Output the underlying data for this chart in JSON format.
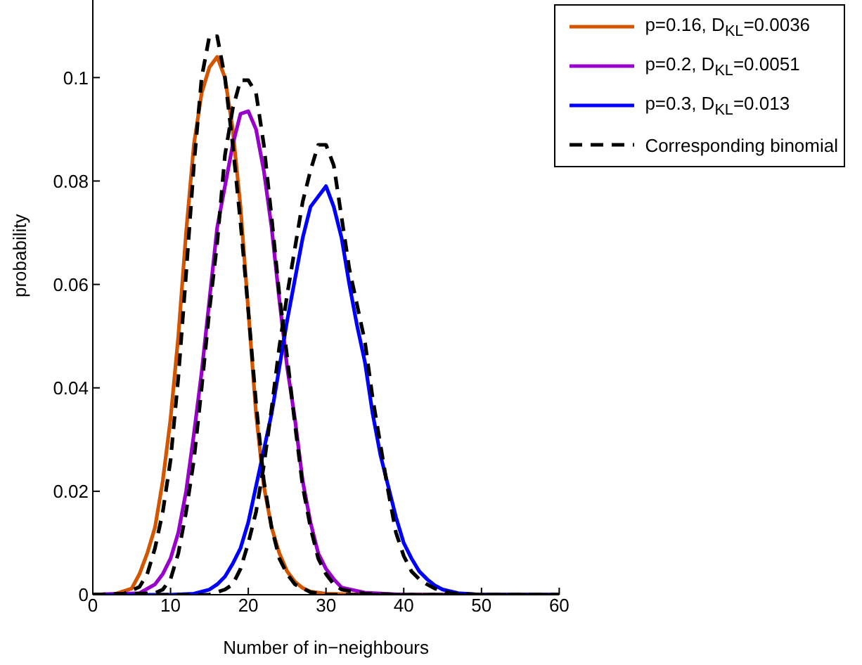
{
  "chart_data": {
    "type": "line",
    "xlabel": "Number of in−neighbours",
    "ylabel": "probability",
    "xlim": [
      0,
      60
    ],
    "xticks": [
      0,
      10,
      20,
      30,
      40,
      50,
      60
    ],
    "ylim": [
      0,
      0.115
    ],
    "yticks": [
      0,
      0.02,
      0.04,
      0.06,
      0.08,
      0.1
    ],
    "grid": false,
    "legend": "top right",
    "marker": "none",
    "series": [
      {
        "name": "p=0.16, D$_{KL}$=0.0036",
        "color": "#d45500",
        "line_style": "solid",
        "x": [
          0,
          3,
          5,
          6,
          7,
          8,
          9,
          10,
          11,
          12,
          13,
          14,
          15,
          16,
          17,
          18,
          19,
          20,
          21,
          22,
          23,
          24,
          25,
          26,
          27,
          28,
          30,
          35,
          60
        ],
        "values": [
          0,
          0.0002,
          0.0012,
          0.004,
          0.008,
          0.013,
          0.022,
          0.034,
          0.05,
          0.07,
          0.087,
          0.097,
          0.102,
          0.104,
          0.1,
          0.09,
          0.075,
          0.055,
          0.035,
          0.021,
          0.013,
          0.008,
          0.0045,
          0.0025,
          0.0013,
          0.0006,
          0.0002,
          0,
          0
        ]
      },
      {
        "name": "p=0.2, D$_{KL}$=0.0051",
        "color": "#9900cc",
        "line_style": "solid",
        "x": [
          0,
          6,
          8,
          9,
          10,
          11,
          12,
          13,
          14,
          15,
          16,
          17,
          18,
          19,
          20,
          21,
          22,
          23,
          24,
          25,
          26,
          27,
          28,
          29,
          30,
          31,
          32,
          35,
          40,
          60
        ],
        "values": [
          0,
          0.0003,
          0.002,
          0.004,
          0.007,
          0.012,
          0.02,
          0.031,
          0.043,
          0.057,
          0.071,
          0.079,
          0.087,
          0.093,
          0.0935,
          0.09,
          0.082,
          0.071,
          0.057,
          0.044,
          0.034,
          0.022,
          0.014,
          0.008,
          0.005,
          0.003,
          0.0014,
          0.0004,
          0,
          0
        ]
      },
      {
        "name": "p=0.3, D$_{KL}$=0.013",
        "color": "#0000ff",
        "line_style": "solid",
        "x": [
          0,
          10,
          13,
          15,
          16,
          17,
          18,
          19,
          20,
          21,
          22,
          23,
          24,
          25,
          26,
          27,
          28,
          29,
          30,
          31,
          32,
          33,
          34,
          35,
          36,
          37,
          38,
          39,
          40,
          41,
          42,
          43,
          44,
          45,
          47,
          50,
          60
        ],
        "values": [
          0,
          0,
          0.0002,
          0.001,
          0.002,
          0.0035,
          0.006,
          0.009,
          0.014,
          0.021,
          0.028,
          0.035,
          0.044,
          0.053,
          0.061,
          0.069,
          0.075,
          0.077,
          0.079,
          0.075,
          0.069,
          0.06,
          0.052,
          0.045,
          0.035,
          0.027,
          0.021,
          0.015,
          0.01,
          0.007,
          0.0045,
          0.003,
          0.0018,
          0.001,
          0.0003,
          0,
          0
        ]
      },
      {
        "name": "Corresponding binomial",
        "color": "#000000",
        "line_style": "dashed",
        "x": [
          0,
          4,
          6,
          7,
          8,
          9,
          10,
          11,
          12,
          13,
          14,
          15,
          16,
          17,
          18,
          19,
          20,
          21,
          22,
          23,
          24,
          25,
          26,
          28,
          30,
          35,
          60
        ],
        "values": [
          0,
          0.0002,
          0.0015,
          0.004,
          0.009,
          0.016,
          0.026,
          0.042,
          0.062,
          0.083,
          0.1,
          0.108,
          0.108,
          0.1,
          0.087,
          0.072,
          0.055,
          0.037,
          0.022,
          0.013,
          0.007,
          0.004,
          0.002,
          0.0005,
          0,
          0,
          0
        ]
      },
      {
        "color": "#000000",
        "line_style": "dashed",
        "x": [
          0,
          8,
          9,
          10,
          11,
          12,
          13,
          14,
          15,
          16,
          17,
          18,
          19,
          20,
          21,
          22,
          23,
          24,
          25,
          26,
          27,
          28,
          29,
          30,
          31,
          32,
          35,
          40,
          60
        ],
        "values": [
          0,
          0.0003,
          0.001,
          0.003,
          0.008,
          0.016,
          0.026,
          0.04,
          0.055,
          0.068,
          0.085,
          0.094,
          0.0995,
          0.0995,
          0.097,
          0.087,
          0.073,
          0.058,
          0.046,
          0.033,
          0.021,
          0.013,
          0.007,
          0.004,
          0.002,
          0.001,
          0.0002,
          0,
          0
        ]
      },
      {
        "color": "#000000",
        "line_style": "dashed",
        "x": [
          0,
          15,
          17,
          18,
          19,
          20,
          21,
          22,
          23,
          24,
          25,
          26,
          27,
          28,
          29,
          30,
          31,
          32,
          33,
          34,
          35,
          36,
          37,
          38,
          39,
          40,
          41,
          42,
          43,
          44,
          46,
          50,
          60
        ],
        "values": [
          0,
          0,
          0.001,
          0.002,
          0.005,
          0.01,
          0.016,
          0.025,
          0.036,
          0.048,
          0.058,
          0.067,
          0.076,
          0.082,
          0.087,
          0.087,
          0.083,
          0.073,
          0.063,
          0.056,
          0.049,
          0.038,
          0.029,
          0.02,
          0.012,
          0.0075,
          0.0045,
          0.003,
          0.002,
          0.0012,
          0.0003,
          0,
          0
        ]
      }
    ]
  }
}
